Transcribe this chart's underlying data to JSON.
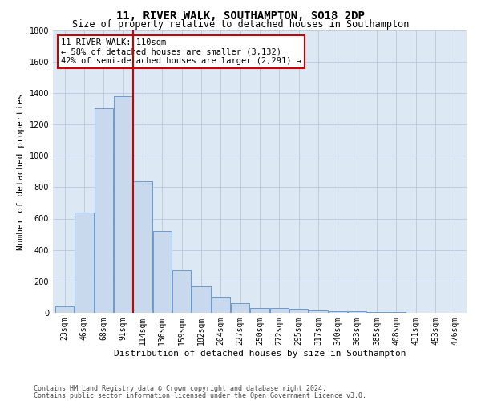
{
  "title": "11, RIVER WALK, SOUTHAMPTON, SO18 2DP",
  "subtitle": "Size of property relative to detached houses in Southampton",
  "xlabel": "Distribution of detached houses by size in Southampton",
  "ylabel": "Number of detached properties",
  "categories": [
    "23sqm",
    "46sqm",
    "68sqm",
    "91sqm",
    "114sqm",
    "136sqm",
    "159sqm",
    "182sqm",
    "204sqm",
    "227sqm",
    "250sqm",
    "272sqm",
    "295sqm",
    "317sqm",
    "340sqm",
    "363sqm",
    "385sqm",
    "408sqm",
    "431sqm",
    "453sqm",
    "476sqm"
  ],
  "values": [
    40,
    640,
    1300,
    1380,
    840,
    520,
    270,
    170,
    100,
    60,
    30,
    30,
    25,
    15,
    10,
    8,
    5,
    3,
    2,
    1,
    1
  ],
  "bar_color": "#c8d9ee",
  "bar_edge_color": "#5b8fc7",
  "vline_x_index": 4,
  "vline_color": "#cc0000",
  "annotation_line1": "11 RIVER WALK: 110sqm",
  "annotation_line2": "← 58% of detached houses are smaller (3,132)",
  "annotation_line3": "42% of semi-detached houses are larger (2,291) →",
  "annotation_box_color": "#ffffff",
  "annotation_box_edge": "#cc0000",
  "ylim": [
    0,
    1800
  ],
  "yticks": [
    0,
    200,
    400,
    600,
    800,
    1000,
    1200,
    1400,
    1600,
    1800
  ],
  "ax_facecolor": "#dde8f5",
  "background_color": "#ffffff",
  "grid_color": "#b8c8dc",
  "footer_line1": "Contains HM Land Registry data © Crown copyright and database right 2024.",
  "footer_line2": "Contains public sector information licensed under the Open Government Licence v3.0.",
  "title_fontsize": 10,
  "subtitle_fontsize": 8.5,
  "xlabel_fontsize": 8,
  "ylabel_fontsize": 8,
  "tick_fontsize": 7,
  "annotation_fontsize": 7.5,
  "footer_fontsize": 6
}
